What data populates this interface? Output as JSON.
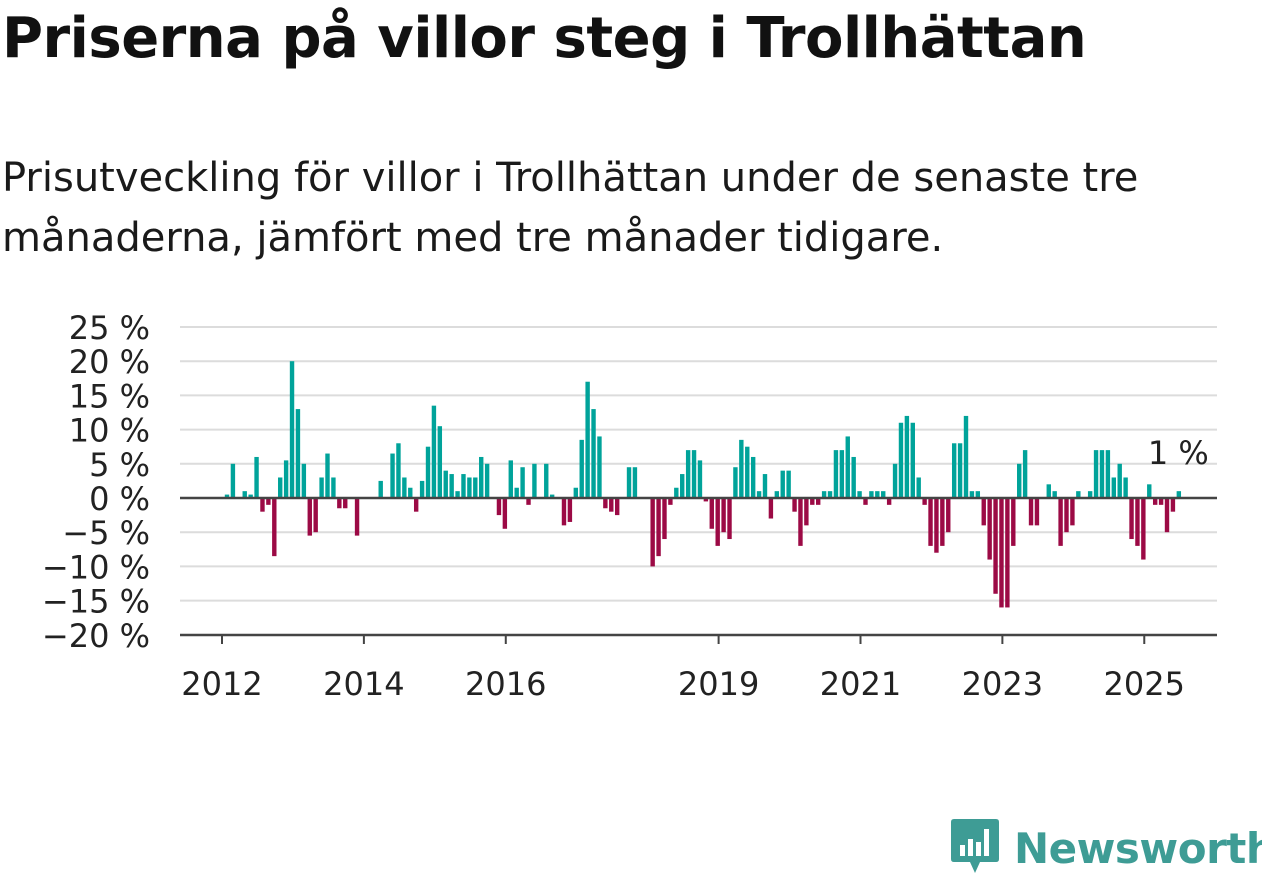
{
  "title": "Priserna på villor steg i Trollhättan",
  "subtitle": "Prisutveckling för villor i Trollhättan under de senaste tre månaderna, jämfört med tre månader tidigare.",
  "brand": "Newsworthy",
  "colors": {
    "positive": "#00a39a",
    "negative": "#9c0a45",
    "grid": "#dcdcdc",
    "axis": "#444444",
    "brand": "#3e9c95"
  },
  "icons": {
    "logo": "newsworthy-logo-icon"
  },
  "chart_data": {
    "type": "bar",
    "ylim": [
      -20,
      25
    ],
    "yticks": [
      25,
      20,
      15,
      10,
      5,
      0,
      -5,
      -10,
      -15,
      -20
    ],
    "ytick_labels": [
      "25 %",
      "20 %",
      "15 %",
      "10 %",
      "5 %",
      "0 %",
      "−5 %",
      "−10 %",
      "−15 %",
      "−20 %"
    ],
    "xticks": [
      "2012",
      "2014",
      "2016",
      "2019",
      "2021",
      "2023",
      "2025"
    ],
    "start": "2012-01",
    "annotation": "1 %",
    "grid": true,
    "values": [
      0.5,
      5,
      0,
      1,
      0.5,
      6,
      -2,
      -1,
      -8.5,
      3,
      5.5,
      20,
      13,
      5,
      -5.5,
      -5,
      3,
      6.5,
      3,
      -1.5,
      -1.5,
      0,
      -5.5,
      0,
      0,
      0,
      2.5,
      0,
      6.5,
      8,
      3,
      1.5,
      -2,
      2.5,
      7.5,
      13.5,
      10.5,
      4,
      3.5,
      1,
      3.5,
      3,
      3,
      6,
      5,
      0,
      -2.5,
      -4.5,
      5.5,
      1.5,
      4.5,
      -1,
      5,
      0,
      5,
      0.5,
      0,
      -4,
      -3.5,
      1.5,
      8.5,
      17,
      13,
      9,
      -1.5,
      -2,
      -2.5,
      0,
      4.5,
      4.5,
      0,
      0,
      -10,
      -8.5,
      -6,
      -1,
      1.5,
      3.5,
      7,
      7,
      5.5,
      -0.5,
      -4.5,
      -7,
      -5,
      -6,
      4.5,
      8.5,
      7.5,
      6,
      1,
      3.5,
      -3,
      1,
      4,
      4,
      -2,
      -7,
      -4,
      -1,
      -1,
      1,
      1,
      7,
      7,
      9,
      6,
      1,
      -1,
      1,
      1,
      1,
      -1,
      5,
      11,
      12,
      11,
      3,
      -1,
      -7,
      -8,
      -7,
      -5,
      8,
      8,
      12,
      1,
      1,
      -4,
      -9,
      -14,
      -16,
      -16,
      -7,
      5,
      7,
      -4,
      -4,
      0,
      2,
      1,
      -7,
      -5,
      -4,
      1,
      0,
      1,
      7,
      7,
      7,
      3,
      5,
      3,
      -6,
      -7,
      -9,
      2,
      -1,
      -1,
      -5,
      -2,
      1
    ]
  }
}
